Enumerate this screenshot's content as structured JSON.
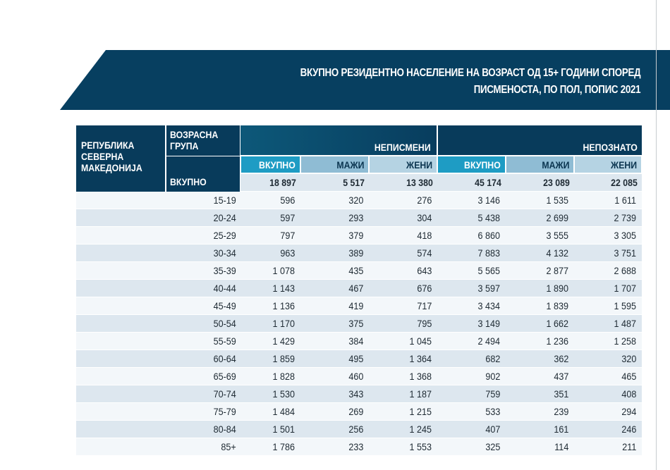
{
  "title": {
    "line1": "ВКУПНО РЕЗИДЕНТНО НАСЕЛЕНИЕ НА ВОЗРАСТ ОД 15+ ГОДИНИ СПОРЕД",
    "line2": "ПИСМЕНОСТА, ПО ПОЛ, ПОПИС 2021"
  },
  "header": {
    "country": "РЕПУБЛИКА СЕВЕРНА МАКЕДОНИЈА",
    "age_group": "ВОЗРАСНА ГРУПА",
    "illiterate": "НЕПИСМЕНИ",
    "unknown": "НЕПОЗНАТО",
    "sub": [
      "ВКУПНО",
      "МАЖИ",
      "ЖЕНИ",
      "ВКУПНО",
      "МАЖИ",
      "ЖЕНИ"
    ],
    "total_label": "ВКУПНО",
    "totals": [
      "18 897",
      "5 517",
      "13 380",
      "45 174",
      "23 089",
      "22 085"
    ]
  },
  "rows": [
    {
      "age": "15-19",
      "v": [
        "596",
        "320",
        "276",
        "3 146",
        "1 535",
        "1 611"
      ]
    },
    {
      "age": "20-24",
      "v": [
        "597",
        "293",
        "304",
        "5 438",
        "2 699",
        "2 739"
      ]
    },
    {
      "age": "25-29",
      "v": [
        "797",
        "379",
        "418",
        "6 860",
        "3 555",
        "3 305"
      ]
    },
    {
      "age": "30-34",
      "v": [
        "963",
        "389",
        "574",
        "7 883",
        "4 132",
        "3 751"
      ]
    },
    {
      "age": "35-39",
      "v": [
        "1 078",
        "435",
        "643",
        "5 565",
        "2 877",
        "2 688"
      ]
    },
    {
      "age": "40-44",
      "v": [
        "1 143",
        "467",
        "676",
        "3 597",
        "1 890",
        "1 707"
      ]
    },
    {
      "age": "45-49",
      "v": [
        "1 136",
        "419",
        "717",
        "3 434",
        "1 839",
        "1 595"
      ]
    },
    {
      "age": "50-54",
      "v": [
        "1 170",
        "375",
        "795",
        "3 149",
        "1 662",
        "1 487"
      ]
    },
    {
      "age": "55-59",
      "v": [
        "1 429",
        "384",
        "1 045",
        "2 494",
        "1 236",
        "1 258"
      ]
    },
    {
      "age": "60-64",
      "v": [
        "1 859",
        "495",
        "1 364",
        "682",
        "362",
        "320"
      ]
    },
    {
      "age": "65-69",
      "v": [
        "1 828",
        "460",
        "1 368",
        "902",
        "437",
        "465"
      ]
    },
    {
      "age": "70-74",
      "v": [
        "1 530",
        "343",
        "1 187",
        "759",
        "351",
        "408"
      ]
    },
    {
      "age": "75-79",
      "v": [
        "1 484",
        "269",
        "1 215",
        "533",
        "239",
        "294"
      ]
    },
    {
      "age": "80-84",
      "v": [
        "1 501",
        "256",
        "1 245",
        "407",
        "161",
        "246"
      ]
    },
    {
      "age": "85+",
      "v": [
        "1 786",
        "233",
        "1 553",
        "325",
        "114",
        "211"
      ]
    }
  ]
}
